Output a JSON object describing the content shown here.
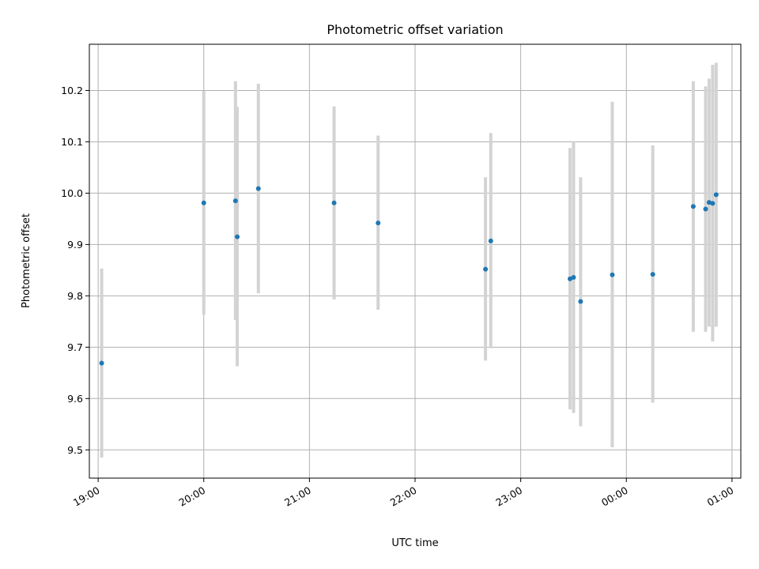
{
  "chart_data": {
    "type": "scatter",
    "title": "Photometric offset variation",
    "xlabel": "UTC time",
    "ylabel": "Photometric offset",
    "x_type": "time",
    "xlim": [
      "18:55",
      "01:05"
    ],
    "ylim": [
      9.445,
      10.29
    ],
    "x_ticks": [
      {
        "time": "19:00",
        "label": "19:00"
      },
      {
        "time": "20:00",
        "label": "20:00"
      },
      {
        "time": "21:00",
        "label": "21:00"
      },
      {
        "time": "22:00",
        "label": "22:00"
      },
      {
        "time": "23:00",
        "label": "23:00"
      },
      {
        "time": "00:00",
        "label": "00:00"
      },
      {
        "time": "01:00",
        "label": "01:00"
      }
    ],
    "y_ticks": [
      {
        "value": 9.5,
        "label": "9.5"
      },
      {
        "value": 9.6,
        "label": "9.6"
      },
      {
        "value": 9.7,
        "label": "9.7"
      },
      {
        "value": 9.8,
        "label": "9.8"
      },
      {
        "value": 9.9,
        "label": "9.9"
      },
      {
        "value": 10.0,
        "label": "10.0"
      },
      {
        "value": 10.1,
        "label": "10.1"
      },
      {
        "value": 10.2,
        "label": "10.2"
      }
    ],
    "grid": true,
    "marker_color": "#1f77b4",
    "errorbar_color": "#d3d3d3",
    "points": [
      {
        "x": "19:02",
        "y": 9.669,
        "err_low": 9.485,
        "err_high": 9.853
      },
      {
        "x": "20:00",
        "y": 9.981,
        "err_low": 9.763,
        "err_high": 10.199
      },
      {
        "x": "20:18",
        "y": 9.985,
        "err_low": 9.753,
        "err_high": 10.218
      },
      {
        "x": "20:19",
        "y": 9.915,
        "err_low": 9.663,
        "err_high": 10.168
      },
      {
        "x": "20:31",
        "y": 10.009,
        "err_low": 9.805,
        "err_high": 10.213
      },
      {
        "x": "21:14",
        "y": 9.981,
        "err_low": 9.793,
        "err_high": 10.169
      },
      {
        "x": "21:39",
        "y": 9.942,
        "err_low": 9.773,
        "err_high": 10.112
      },
      {
        "x": "22:40",
        "y": 9.852,
        "err_low": 9.674,
        "err_high": 10.031
      },
      {
        "x": "22:43",
        "y": 9.907,
        "err_low": 9.698,
        "err_high": 10.117
      },
      {
        "x": "23:28",
        "y": 9.833,
        "err_low": 9.579,
        "err_high": 10.088
      },
      {
        "x": "23:30",
        "y": 9.836,
        "err_low": 9.572,
        "err_high": 10.1
      },
      {
        "x": "23:34",
        "y": 9.789,
        "err_low": 9.546,
        "err_high": 10.031
      },
      {
        "x": "23:52",
        "y": 9.841,
        "err_low": 9.505,
        "err_high": 10.178
      },
      {
        "x": "00:15",
        "y": 9.842,
        "err_low": 9.592,
        "err_high": 10.093
      },
      {
        "x": "00:38",
        "y": 9.974,
        "err_low": 9.73,
        "err_high": 10.218
      },
      {
        "x": "00:45",
        "y": 9.969,
        "err_low": 9.73,
        "err_high": 10.208
      },
      {
        "x": "00:47",
        "y": 9.982,
        "err_low": 9.74,
        "err_high": 10.223
      },
      {
        "x": "00:49",
        "y": 9.98,
        "err_low": 9.711,
        "err_high": 10.25
      },
      {
        "x": "00:51",
        "y": 9.997,
        "err_low": 9.74,
        "err_high": 10.254
      }
    ]
  }
}
